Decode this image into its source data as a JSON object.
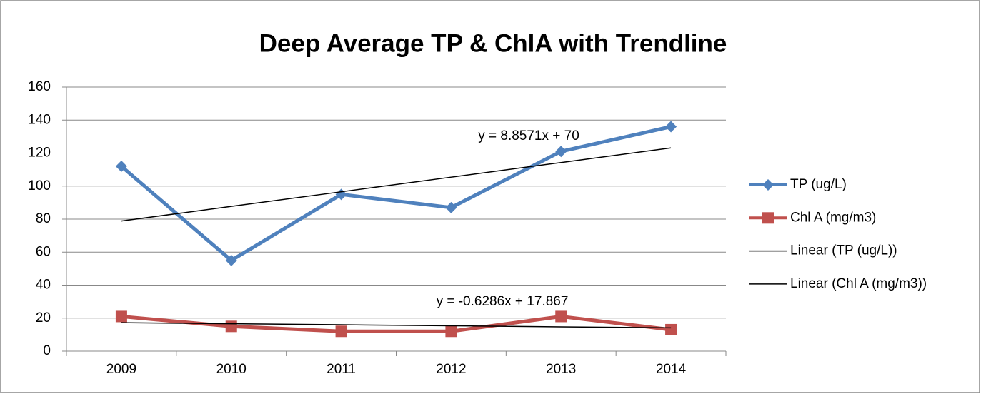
{
  "chart_data": {
    "type": "line",
    "title": "Deep Average TP & ChlA with Trendline",
    "categories": [
      "2009",
      "2010",
      "2011",
      "2012",
      "2013",
      "2014"
    ],
    "series": [
      {
        "name": "TP (ug/L)",
        "color": "#4f81bd",
        "marker": "diamond",
        "line_width": 5,
        "values": [
          112,
          55,
          95,
          87,
          121,
          136
        ]
      },
      {
        "name": "Chl A (mg/m3)",
        "color": "#c0504d",
        "marker": "square",
        "line_width": 5,
        "values": [
          21,
          15,
          12,
          12,
          21,
          13
        ]
      },
      {
        "name": "Linear (TP (ug/L))",
        "color": "#000000",
        "marker": "none",
        "line_width": 1.5,
        "values": [
          78.86,
          87.71,
          96.57,
          105.43,
          114.29,
          123.14
        ]
      },
      {
        "name": "Linear (Chl A (mg/m3))",
        "color": "#000000",
        "marker": "none",
        "line_width": 1.5,
        "values": [
          17.24,
          16.61,
          15.98,
          15.35,
          14.72,
          14.1
        ]
      }
    ],
    "annotations": [
      "y = 8.8571x + 70",
      "y = -0.6286x + 17.867"
    ],
    "ylim": [
      0,
      160
    ],
    "yticks": [
      0,
      20,
      40,
      60,
      80,
      100,
      120,
      140,
      160
    ],
    "grid": true,
    "legend": "right"
  }
}
